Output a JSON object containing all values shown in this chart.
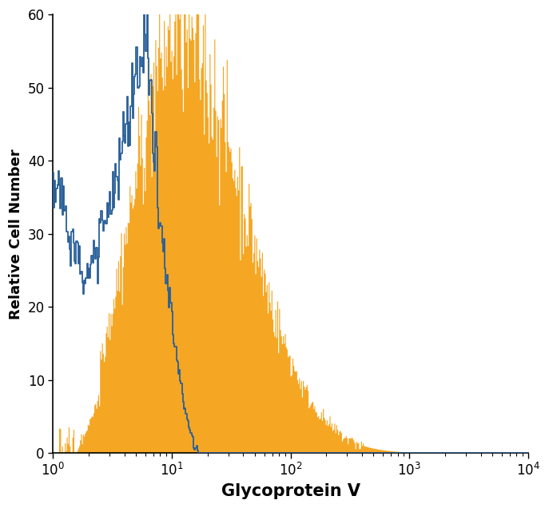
{
  "title": "",
  "xlabel": "Glycoprotein V",
  "ylabel": "Relative Cell Number",
  "xlim_log": [
    1,
    10000
  ],
  "ylim": [
    0,
    60
  ],
  "yticks": [
    0,
    10,
    20,
    30,
    40,
    50,
    60
  ],
  "orange_color": "#F5A623",
  "blue_color": "#2A6099",
  "background_color": "#ffffff",
  "xlabel_fontsize": 15,
  "ylabel_fontsize": 13,
  "tick_fontsize": 12,
  "seed": 42
}
